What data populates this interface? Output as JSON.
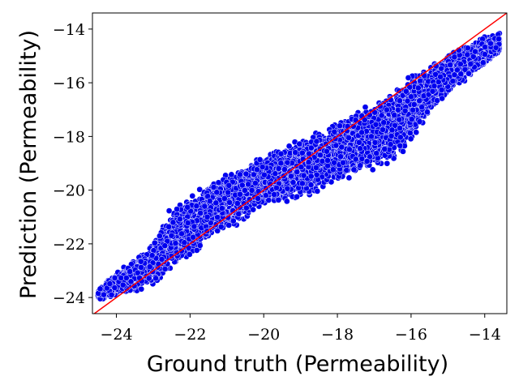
{
  "chart_data": {
    "type": "scatter",
    "title": "",
    "xlabel": "Ground truth (Permeability)",
    "ylabel": "Prediction (Permeability)",
    "xlim": [
      -24.65,
      -13.4
    ],
    "ylim": [
      -24.6,
      -13.4
    ],
    "x_ticks": [
      -24,
      -22,
      -20,
      -18,
      -16,
      -14
    ],
    "y_ticks": [
      -24,
      -22,
      -20,
      -18,
      -16,
      -14
    ],
    "x_tick_labels": [
      "−24",
      "−22",
      "−20",
      "−18",
      "−16",
      "−14"
    ],
    "y_tick_labels": [
      "−24",
      "−22",
      "−20",
      "−18",
      "−16",
      "−14"
    ],
    "grid": false,
    "legend": "none",
    "series": [
      {
        "marker_color": "#0000ee",
        "edge_color": "#ffffff",
        "band": {
          "x": [
            -24.5,
            -24.0,
            -23.5,
            -23.0,
            -22.5,
            -22.0,
            -21.5,
            -21.0,
            -20.5,
            -20.0,
            -19.5,
            -19.0,
            -18.5,
            -18.0,
            -17.5,
            -17.0,
            -16.5,
            -16.0,
            -15.5,
            -15.0,
            -14.5,
            -14.0,
            -13.6
          ],
          "y_low": [
            -24.1,
            -24.0,
            -23.9,
            -23.6,
            -23.0,
            -22.6,
            -22.1,
            -21.6,
            -21.2,
            -20.7,
            -20.5,
            -20.4,
            -20.2,
            -19.9,
            -19.6,
            -19.3,
            -19.2,
            -18.3,
            -17.3,
            -16.5,
            -16.0,
            -15.5,
            -14.9
          ],
          "y_high": [
            -23.7,
            -23.0,
            -22.5,
            -21.9,
            -20.5,
            -20.1,
            -19.6,
            -19.3,
            -19.0,
            -18.6,
            -18.3,
            -17.9,
            -17.7,
            -17.3,
            -16.8,
            -16.6,
            -16.2,
            -15.7,
            -15.3,
            -14.9,
            -14.5,
            -14.2,
            -14.1
          ]
        },
        "n_points": 9000
      }
    ],
    "reference_line": {
      "label": "y = x",
      "color": "#ff0000",
      "from": [
        -24.65,
        -24.65
      ],
      "to": [
        -13.4,
        -13.4
      ]
    }
  }
}
